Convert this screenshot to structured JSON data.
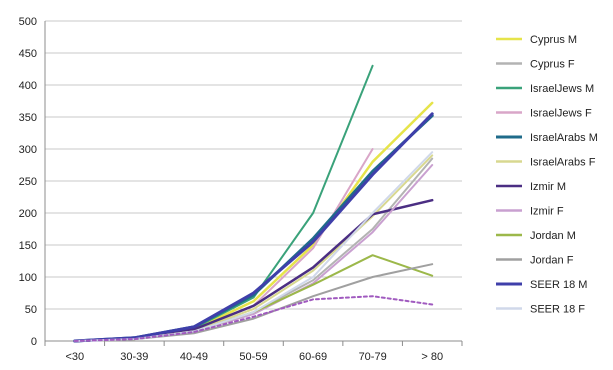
{
  "chart_data": {
    "type": "line",
    "title": "",
    "xlabel": "",
    "ylabel": "",
    "categories": [
      "<30",
      "30-39",
      "40-49",
      "50-59",
      "60-69",
      "70-79",
      "> 80"
    ],
    "ylim": [
      0,
      500
    ],
    "yticks": [
      0,
      50,
      100,
      150,
      200,
      250,
      300,
      350,
      400,
      450,
      500
    ],
    "grid": true,
    "legend": "right",
    "series": [
      {
        "name": "Cyprus M",
        "color": "#e6e44a",
        "width": 2.5,
        "values": [
          0,
          4,
          18,
          62,
          150,
          280,
          372
        ]
      },
      {
        "name": "Cyprus  F",
        "color": "#b3b3b3",
        "width": 2,
        "values": [
          0,
          3,
          15,
          45,
          95,
          175,
          285
        ]
      },
      {
        "name": "IsraelJews M",
        "color": "#3aa27a",
        "width": 2,
        "values": [
          0,
          5,
          20,
          68,
          200,
          430,
          null
        ]
      },
      {
        "name": "IsraelJews  F",
        "color": "#d9a6c8",
        "width": 2,
        "values": [
          0,
          4,
          17,
          55,
          145,
          300,
          null
        ]
      },
      {
        "name": "IsraelArabs M",
        "color": "#1f6b8a",
        "width": 3,
        "values": [
          0,
          5,
          22,
          72,
          160,
          265,
          352
        ]
      },
      {
        "name": "IsraelArabs  F",
        "color": "#d8d890",
        "width": 2,
        "values": [
          0,
          3,
          16,
          50,
          110,
          195,
          290
        ]
      },
      {
        "name": "Izmir M",
        "color": "#4b2e83",
        "width": 2.5,
        "values": [
          0,
          4,
          18,
          55,
          115,
          198,
          220
        ]
      },
      {
        "name": "Izmir  F",
        "color": "#c9a0d0",
        "width": 2,
        "values": [
          0,
          3,
          15,
          42,
          90,
          170,
          275
        ]
      },
      {
        "name": "Jordan M",
        "color": "#9cb84a",
        "width": 2,
        "values": [
          0,
          3,
          15,
          45,
          88,
          134,
          102
        ]
      },
      {
        "name": "Jordan  F",
        "color": "#a0a0a0",
        "width": 2,
        "values": [
          0,
          3,
          12,
          35,
          70,
          100,
          120
        ]
      },
      {
        "name": "SEER 18 M",
        "color": "#3f3faa",
        "width": 3,
        "values": [
          0,
          5,
          22,
          75,
          155,
          260,
          355
        ]
      },
      {
        "name": "SEER 18  F",
        "color": "#d0d8ea",
        "width": 2,
        "values": [
          0,
          3,
          15,
          45,
          100,
          200,
          295
        ]
      },
      {
        "name": "",
        "color": "#a05abf",
        "width": 2,
        "dash": "3,3",
        "values": [
          0,
          3,
          14,
          38,
          65,
          70,
          57
        ]
      }
    ]
  }
}
